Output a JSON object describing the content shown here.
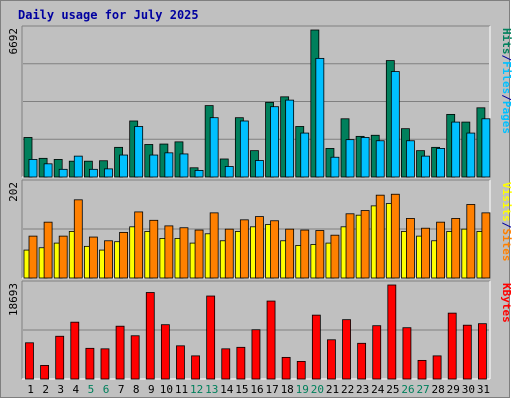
{
  "title": "Daily usage for July 2025",
  "colors": {
    "background": "#c0c0c0",
    "hits": "#00805c",
    "files": "#00c0ff",
    "sites": "#ff8000",
    "visits": "#ffff00",
    "kbytes": "#ff0000",
    "title": "#0000a0",
    "weekend_label": "#00805c",
    "weekday_label": "#000000",
    "separator": "#0000a0"
  },
  "chart_data": [
    {
      "type": "bar",
      "name": "hits-files",
      "categories": [
        "1",
        "2",
        "3",
        "4",
        "5",
        "6",
        "7",
        "8",
        "9",
        "10",
        "11",
        "12",
        "13",
        "14",
        "15",
        "16",
        "17",
        "18",
        "19",
        "20",
        "21",
        "22",
        "23",
        "24",
        "25",
        "26",
        "27",
        "28",
        "29",
        "30",
        "31"
      ],
      "weekend_days": [
        "5",
        "6",
        "12",
        "13",
        "19",
        "20",
        "26",
        "27"
      ],
      "ymax_label": "6692",
      "ylim": [
        0,
        6692
      ],
      "grid": true,
      "legend": [
        {
          "label": "Hits",
          "color": "#00805c"
        },
        {
          "label": "Files",
          "color": "#00c0ff"
        },
        {
          "label": "Pages",
          "color": "#00c0ff"
        }
      ],
      "series": [
        {
          "name": "Hits",
          "values": [
            1800,
            850,
            800,
            720,
            720,
            740,
            1350,
            2550,
            1480,
            1500,
            1600,
            420,
            3250,
            820,
            2700,
            1200,
            3400,
            3650,
            2300,
            6692,
            1300,
            2650,
            1850,
            1900,
            5300,
            2200,
            1200,
            1350,
            2850,
            2500,
            3150
          ]
        },
        {
          "name": "Files",
          "values": [
            800,
            600,
            350,
            950,
            350,
            370,
            1000,
            2300,
            1000,
            1100,
            1050,
            300,
            2700,
            480,
            2550,
            750,
            3200,
            3500,
            2000,
            5400,
            900,
            1700,
            1800,
            1650,
            4800,
            1650,
            950,
            1300,
            2500,
            2000,
            2650
          ]
        }
      ]
    },
    {
      "type": "bar",
      "name": "visits-sites",
      "categories": [
        "1",
        "2",
        "3",
        "4",
        "5",
        "6",
        "7",
        "8",
        "9",
        "10",
        "11",
        "12",
        "13",
        "14",
        "15",
        "16",
        "17",
        "18",
        "19",
        "20",
        "21",
        "22",
        "23",
        "24",
        "25",
        "26",
        "27",
        "28",
        "29",
        "30",
        "31"
      ],
      "ymax_label": "202",
      "ylim": [
        0,
        202
      ],
      "grid": true,
      "legend": [
        {
          "label": "Visits",
          "color": "#ffff00"
        },
        {
          "label": "Sites",
          "color": "#ff8000"
        }
      ],
      "series": [
        {
          "name": "Visits",
          "values": [
            60,
            65,
            75,
            100,
            68,
            60,
            78,
            110,
            100,
            85,
            85,
            75,
            95,
            80,
            100,
            110,
            115,
            80,
            70,
            72,
            75,
            110,
            135,
            155,
            160,
            100,
            90,
            80,
            100,
            105,
            100
          ]
        },
        {
          "name": "Sites",
          "values": [
            90,
            120,
            90,
            168,
            88,
            80,
            98,
            142,
            124,
            112,
            108,
            103,
            140,
            105,
            125,
            132,
            123,
            105,
            103,
            102,
            92,
            138,
            145,
            178,
            180,
            128,
            107,
            120,
            128,
            158,
            140
          ]
        }
      ]
    },
    {
      "type": "bar",
      "name": "kbytes",
      "categories": [
        "1",
        "2",
        "3",
        "4",
        "5",
        "6",
        "7",
        "8",
        "9",
        "10",
        "11",
        "12",
        "13",
        "14",
        "15",
        "16",
        "17",
        "18",
        "19",
        "20",
        "21",
        "22",
        "23",
        "24",
        "25",
        "26",
        "27",
        "28",
        "29",
        "30",
        "31"
      ],
      "ymax_label": "18693",
      "ylim": [
        0,
        18693
      ],
      "grid": true,
      "legend": [
        {
          "label": "KBytes",
          "color": "#ff0000"
        }
      ],
      "series": [
        {
          "name": "KBytes",
          "values": [
            7200,
            2700,
            8500,
            11300,
            6100,
            6000,
            10500,
            8600,
            17200,
            10800,
            6600,
            4600,
            16500,
            6000,
            6300,
            9800,
            15500,
            4300,
            3500,
            12700,
            7800,
            11800,
            7100,
            10600,
            18693,
            10200,
            3700,
            4600,
            13100,
            10700,
            11000
          ]
        }
      ]
    }
  ]
}
